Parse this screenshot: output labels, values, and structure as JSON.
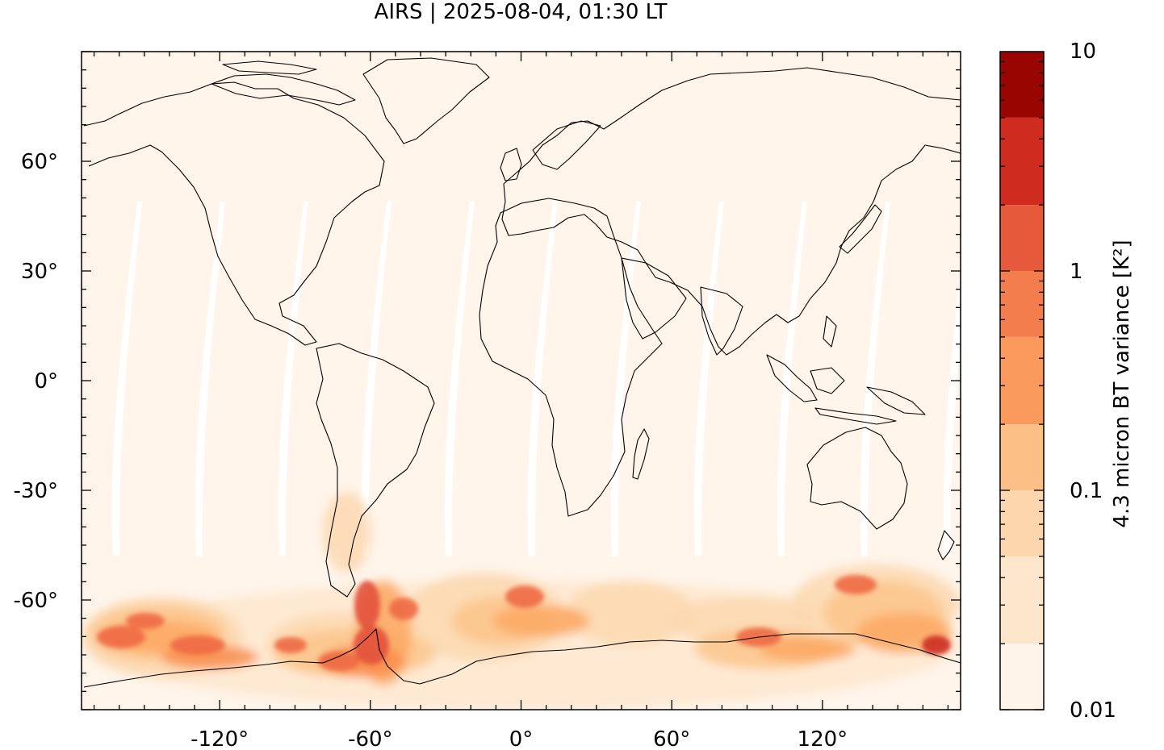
{
  "title": "AIRS | 2025-08-04, 01:30 LT",
  "colorbar": {
    "label": "4.3 micron BT variance [K²]",
    "ticks": [
      {
        "value": 0.01,
        "label": "0.01"
      },
      {
        "value": 0.1,
        "label": "0.1"
      },
      {
        "value": 1,
        "label": "1"
      },
      {
        "value": 10,
        "label": "10"
      }
    ],
    "levels": [
      0.01,
      0.02,
      0.0316,
      0.05,
      0.1,
      0.2,
      0.316,
      0.5,
      1,
      2,
      3.16,
      5,
      10
    ],
    "colors": [
      "#fff5eb",
      "#fee8cf",
      "#fdd8b0",
      "#fdc58c",
      "#fda863",
      "#f98d4d",
      "#ee6a44",
      "#e2513a",
      "#cc2b1f",
      "#9b0900"
    ]
  },
  "map": {
    "projection": "plate carree",
    "lon_range": [
      -175,
      175
    ],
    "lat_range": [
      -90,
      90
    ],
    "x_ticks": [
      {
        "value": -120,
        "label": "-120°"
      },
      {
        "value": -60,
        "label": "-60°"
      },
      {
        "value": 0,
        "label": "0°"
      },
      {
        "value": 60,
        "label": "60°"
      },
      {
        "value": 120,
        "label": "120°"
      }
    ],
    "y_ticks": [
      {
        "value": 60,
        "label": "60°"
      },
      {
        "value": 30,
        "label": "30°"
      },
      {
        "value": 0,
        "label": "0°"
      },
      {
        "value": -30,
        "label": "-30°"
      },
      {
        "value": -60,
        "label": "-60°"
      }
    ],
    "background_color": "#fff5eb",
    "swath_gap_color": "#ffffff",
    "coastline_color": "#000000"
  }
}
